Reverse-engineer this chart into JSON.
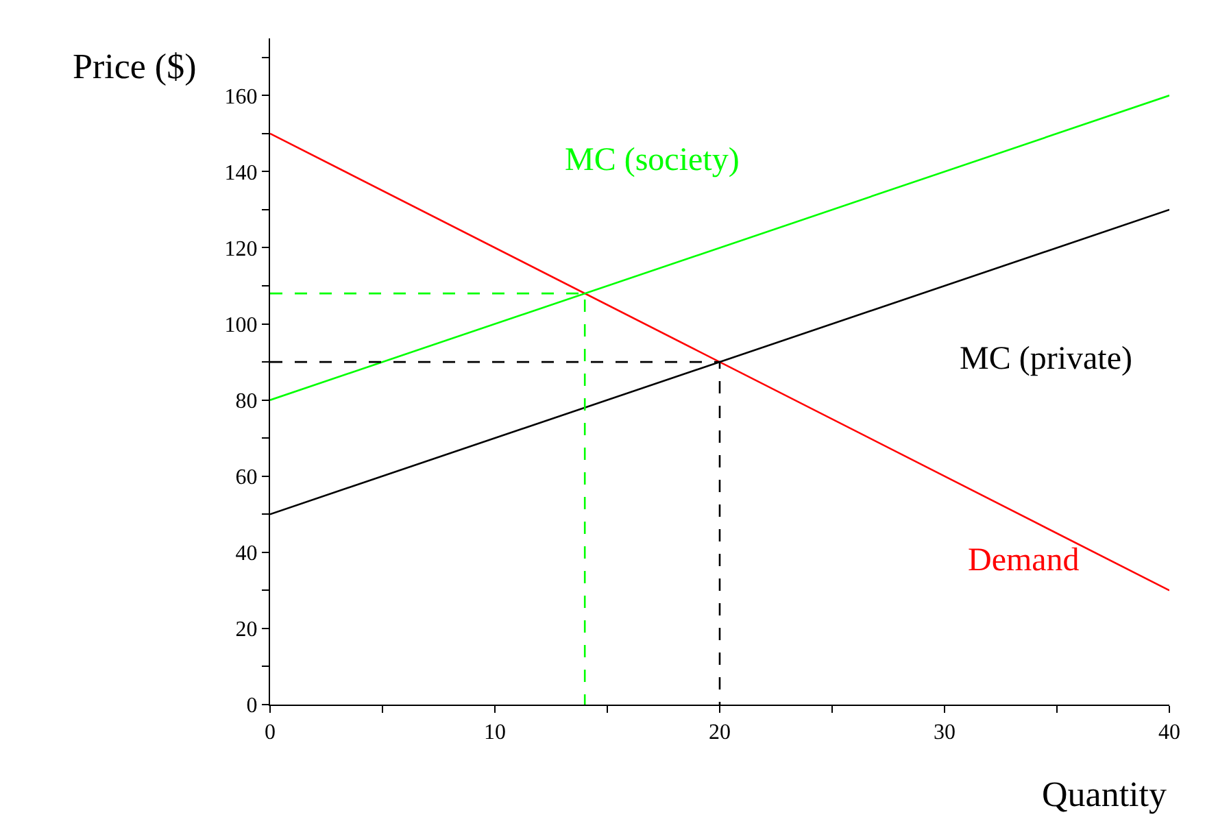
{
  "chart_data": {
    "type": "line",
    "xlabel": "Quantity",
    "ylabel": "Price ($)",
    "x": [
      0,
      40
    ],
    "series": [
      {
        "name": "Demand",
        "color": "#ff0000",
        "values": [
          150,
          30
        ]
      },
      {
        "name": "MC (private)",
        "color": "#000000",
        "values": [
          50,
          130
        ]
      },
      {
        "name": "MC (society)",
        "color": "#00ff00",
        "values": [
          80,
          160
        ]
      },
      {
        "color": "#00ff00",
        "x": [
          0,
          14,
          14
        ],
        "values": [
          108,
          108,
          0
        ],
        "line_style": "dashed"
      },
      {
        "color": "#000000",
        "x": [
          0,
          20,
          20
        ],
        "values": [
          90,
          90,
          0
        ],
        "line_style": "dashed"
      }
    ],
    "xlim": [
      0,
      40
    ],
    "ylim": [
      0,
      175
    ],
    "xticks": [
      0,
      {
        "value": 5,
        "label": null
      },
      10,
      {
        "value": 15,
        "label": null
      },
      20,
      {
        "value": 25,
        "label": null
      },
      30,
      {
        "value": 35,
        "label": null
      },
      40
    ],
    "yticks": [
      0,
      {
        "value": 10,
        "label": null
      },
      20,
      {
        "value": 30,
        "label": null
      },
      40,
      {
        "value": 50,
        "label": null
      },
      60,
      {
        "value": 70,
        "label": null
      },
      80,
      {
        "value": 90,
        "label": null
      },
      100,
      {
        "value": 110,
        "label": null
      },
      120,
      {
        "value": 130,
        "label": null
      },
      140,
      {
        "value": 150,
        "label": null
      },
      160,
      {
        "value": 170,
        "label": null
      }
    ],
    "grid": false,
    "legend": false,
    "marker": "none",
    "line_style": "solid"
  }
}
